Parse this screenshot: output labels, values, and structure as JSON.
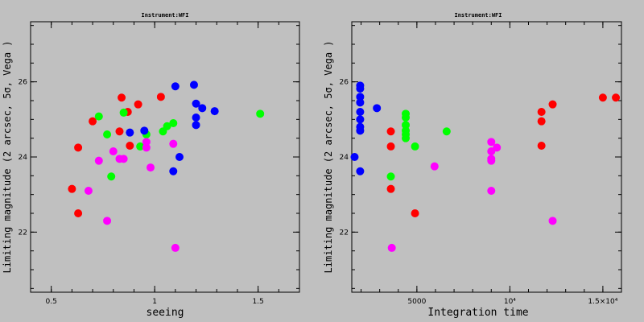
{
  "colors": {
    "background": "#c0c0c0",
    "red": "#ff0000",
    "green": "#00ff00",
    "blue": "#0000ff",
    "magenta": "#ff00ff"
  },
  "chart_data": [
    {
      "type": "scatter",
      "title": "Instrument:WFI",
      "xlabel": "seeing",
      "ylabel": "Limiting magnitude (2 arcsec, 5σ, Vega )",
      "xlim": [
        0.4,
        1.7
      ],
      "ylim": [
        20.4,
        27.6
      ],
      "xticks": [
        {
          "v": 0.5,
          "label": "0.5"
        },
        {
          "v": 1,
          "label": "1"
        },
        {
          "v": 1.5,
          "label": "1.5"
        }
      ],
      "yticks": [
        {
          "v": 22,
          "label": "22"
        },
        {
          "v": 24,
          "label": "24"
        },
        {
          "v": 26,
          "label": "26"
        }
      ],
      "grid": false,
      "series": [
        {
          "color": "red",
          "points": [
            [
              0.6,
              23.15
            ],
            [
              0.63,
              24.25
            ],
            [
              0.63,
              22.5
            ],
            [
              0.7,
              24.95
            ],
            [
              0.83,
              24.68
            ],
            [
              0.84,
              25.58
            ],
            [
              0.87,
              25.2
            ],
            [
              0.88,
              24.3
            ],
            [
              0.92,
              25.4
            ],
            [
              1.03,
              25.6
            ]
          ]
        },
        {
          "color": "green",
          "points": [
            [
              0.73,
              25.08
            ],
            [
              0.77,
              24.6
            ],
            [
              0.79,
              23.48
            ],
            [
              0.85,
              25.18
            ],
            [
              0.93,
              24.28
            ],
            [
              0.96,
              24.6
            ],
            [
              1.04,
              24.68
            ],
            [
              1.06,
              24.82
            ],
            [
              1.09,
              24.9
            ],
            [
              1.51,
              25.15
            ]
          ]
        },
        {
          "color": "blue",
          "points": [
            [
              0.88,
              24.65
            ],
            [
              0.95,
              24.7
            ],
            [
              1.09,
              23.62
            ],
            [
              1.1,
              25.88
            ],
            [
              1.12,
              24.0
            ],
            [
              1.19,
              25.92
            ],
            [
              1.2,
              25.42
            ],
            [
              1.2,
              25.05
            ],
            [
              1.2,
              24.85
            ],
            [
              1.23,
              25.3
            ],
            [
              1.29,
              25.22
            ]
          ]
        },
        {
          "color": "magenta",
          "points": [
            [
              0.68,
              23.1
            ],
            [
              0.73,
              23.9
            ],
            [
              0.77,
              22.3
            ],
            [
              0.8,
              24.15
            ],
            [
              0.83,
              23.95
            ],
            [
              0.85,
              23.95
            ],
            [
              0.96,
              24.25
            ],
            [
              0.96,
              24.4
            ],
            [
              0.98,
              23.72
            ],
            [
              1.09,
              24.35
            ],
            [
              1.1,
              21.58
            ]
          ]
        }
      ]
    },
    {
      "type": "scatter",
      "title": "Instrument:WFI",
      "xlabel": "Integration time",
      "ylabel": "Limiting magnitude (2 arcsec, 5σ, Vega )",
      "xlim": [
        1500,
        16000
      ],
      "ylim": [
        20.4,
        27.6
      ],
      "xticks": [
        {
          "v": 5000,
          "label": "5000"
        },
        {
          "v": 10000,
          "label": "10⁴"
        },
        {
          "v": 15000,
          "label": "1.5×10⁴"
        }
      ],
      "yticks": [
        {
          "v": 22,
          "label": "22"
        },
        {
          "v": 24,
          "label": "24"
        },
        {
          "v": 26,
          "label": "26"
        }
      ],
      "grid": false,
      "series": [
        {
          "color": "red",
          "points": [
            [
              3600,
              24.68
            ],
            [
              3600,
              24.28
            ],
            [
              3600,
              23.15
            ],
            [
              4900,
              22.5
            ],
            [
              11700,
              25.2
            ],
            [
              11700,
              24.95
            ],
            [
              11700,
              24.3
            ],
            [
              12300,
              25.4
            ],
            [
              15000,
              25.58
            ],
            [
              15700,
              25.58
            ]
          ]
        },
        {
          "color": "green",
          "points": [
            [
              3600,
              23.48
            ],
            [
              4400,
              25.15
            ],
            [
              4400,
              25.05
            ],
            [
              4400,
              24.85
            ],
            [
              4400,
              24.7
            ],
            [
              4400,
              24.6
            ],
            [
              4400,
              24.5
            ],
            [
              4900,
              24.28
            ],
            [
              6600,
              24.68
            ]
          ]
        },
        {
          "color": "blue",
          "points": [
            [
              1650,
              24.0
            ],
            [
              1950,
              25.9
            ],
            [
              1950,
              25.82
            ],
            [
              1950,
              25.6
            ],
            [
              1950,
              25.45
            ],
            [
              1950,
              25.2
            ],
            [
              1950,
              25.0
            ],
            [
              1950,
              24.8
            ],
            [
              1950,
              24.7
            ],
            [
              1950,
              23.62
            ],
            [
              2850,
              25.3
            ]
          ]
        },
        {
          "color": "magenta",
          "points": [
            [
              3650,
              21.58
            ],
            [
              5950,
              23.75
            ],
            [
              9000,
              24.4
            ],
            [
              9000,
              24.15
            ],
            [
              9000,
              23.95
            ],
            [
              9000,
              23.9
            ],
            [
              9000,
              23.1
            ],
            [
              9300,
              24.25
            ],
            [
              12300,
              22.3
            ]
          ]
        }
      ]
    }
  ]
}
